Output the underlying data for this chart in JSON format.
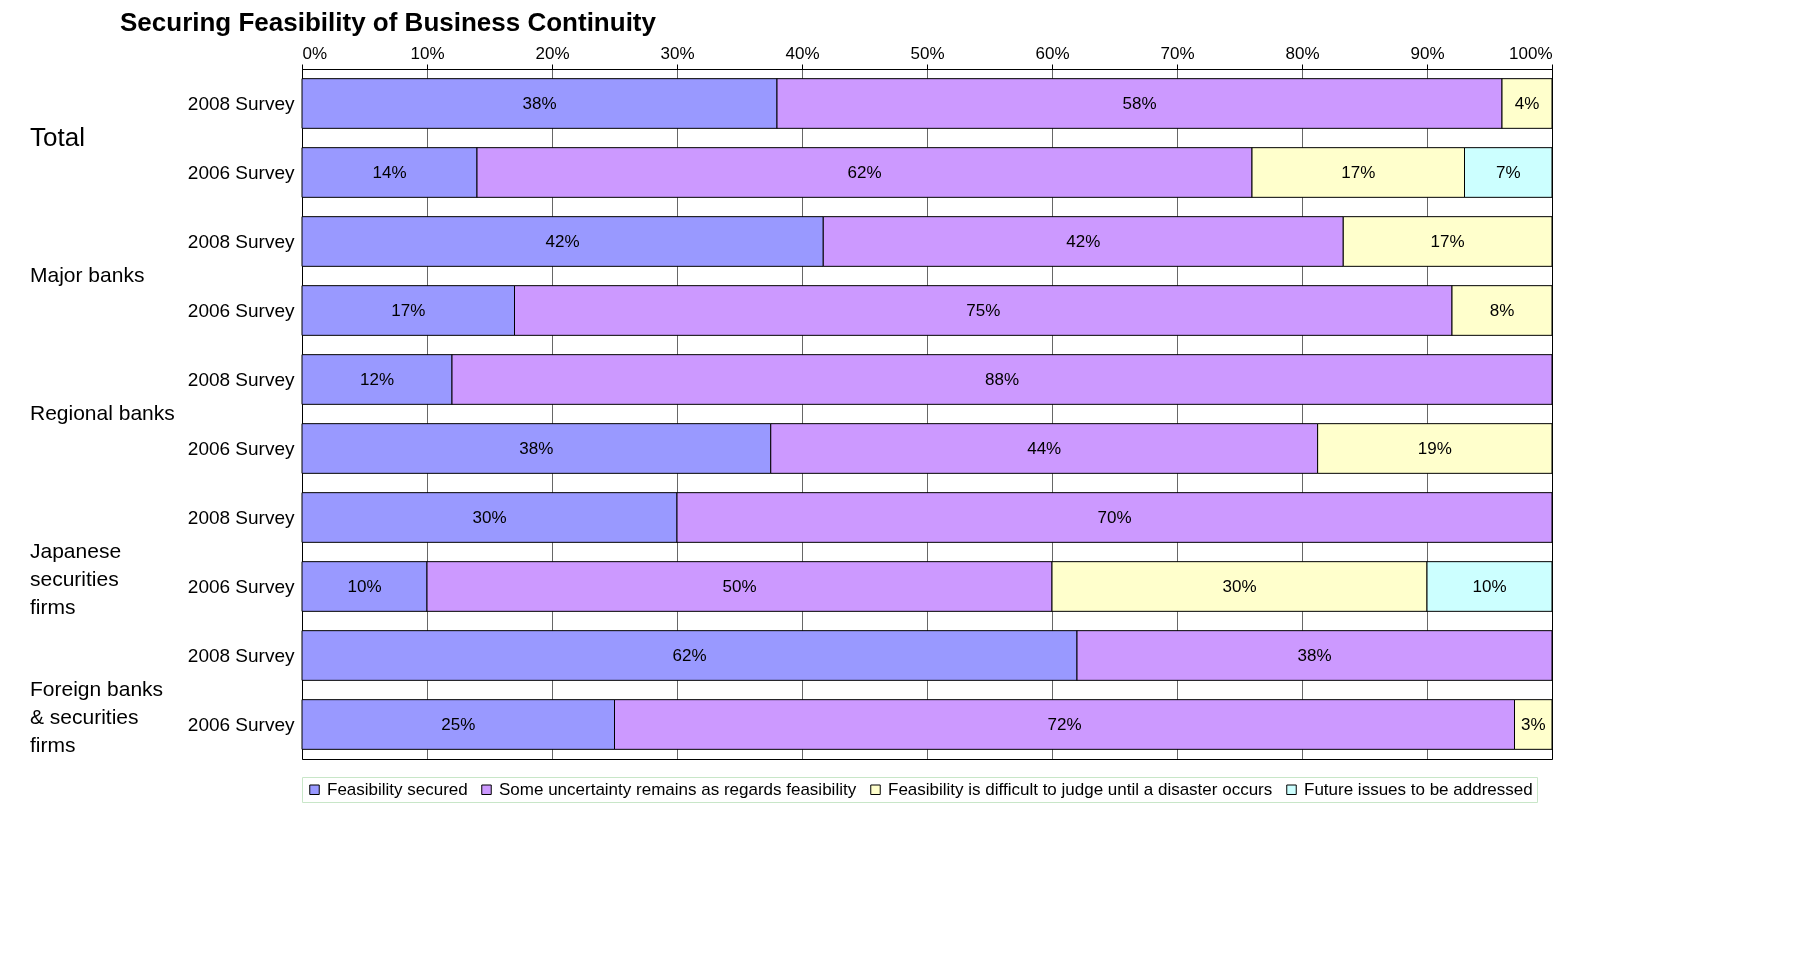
{
  "chart_data": {
    "type": "bar",
    "orientation": "horizontal",
    "stacked": true,
    "title": "Securing Feasibility of Business Continuity",
    "categories": [
      "2008 Survey",
      "2006 Survey",
      "2008 Survey",
      "2006 Survey",
      "2008 Survey",
      "2006 Survey",
      "2008 Survey",
      "2006 Survey",
      "2008 Survey",
      "2006 Survey"
    ],
    "annotations": [
      "Total",
      "Major banks",
      "Regional banks",
      "Japanese securities firms",
      "Foreign banks & securities firms"
    ],
    "series": [
      {
        "name": "Feasibility secured",
        "color": "#9999ff",
        "values": [
          38,
          14,
          41.7,
          17,
          12,
          37.5,
          30,
          10,
          62,
          25
        ],
        "value_labels": [
          "38%",
          "14%",
          "42%",
          "17%",
          "12%",
          "38%",
          "30%",
          "10%",
          "62%",
          "25%"
        ]
      },
      {
        "name": "Some uncertainty remains as regards feasibility",
        "color": "#cc99ff",
        "values": [
          58,
          62,
          41.6,
          75,
          88,
          43.75,
          70,
          50,
          38,
          72
        ],
        "value_labels": [
          "58%",
          "62%",
          "42%",
          "75%",
          "88%",
          "44%",
          "70%",
          "50%",
          "38%",
          "72%"
        ]
      },
      {
        "name": "Feasibility is difficult to judge until a disaster occurs",
        "color": "#ffffcc",
        "values": [
          4,
          17,
          16.7,
          8,
          null,
          18.75,
          null,
          30,
          null,
          3
        ],
        "value_labels": [
          "4%",
          "17%",
          "17%",
          "8%",
          null,
          "19%",
          null,
          "30%",
          null,
          "3%"
        ]
      },
      {
        "name": "Future issues to be addressed",
        "color": "#ccffff",
        "values": [
          null,
          7,
          null,
          null,
          null,
          null,
          null,
          10,
          null,
          null
        ],
        "value_labels": [
          null,
          "7%",
          null,
          null,
          null,
          null,
          null,
          "10%",
          null,
          null
        ]
      }
    ],
    "xlim": [
      0,
      100
    ],
    "xticks": [
      {
        "value": 0,
        "label": "0%"
      },
      {
        "value": 10,
        "label": "10%"
      },
      {
        "value": 20,
        "label": "20%"
      },
      {
        "value": 30,
        "label": "30%"
      },
      {
        "value": 40,
        "label": "40%"
      },
      {
        "value": 50,
        "label": "50%"
      },
      {
        "value": 60,
        "label": "60%"
      },
      {
        "value": 70,
        "label": "70%"
      },
      {
        "value": 80,
        "label": "80%"
      },
      {
        "value": 90,
        "label": "90%"
      },
      {
        "value": 100,
        "label": "100%"
      }
    ],
    "grid": "x",
    "legend": "bottom"
  }
}
